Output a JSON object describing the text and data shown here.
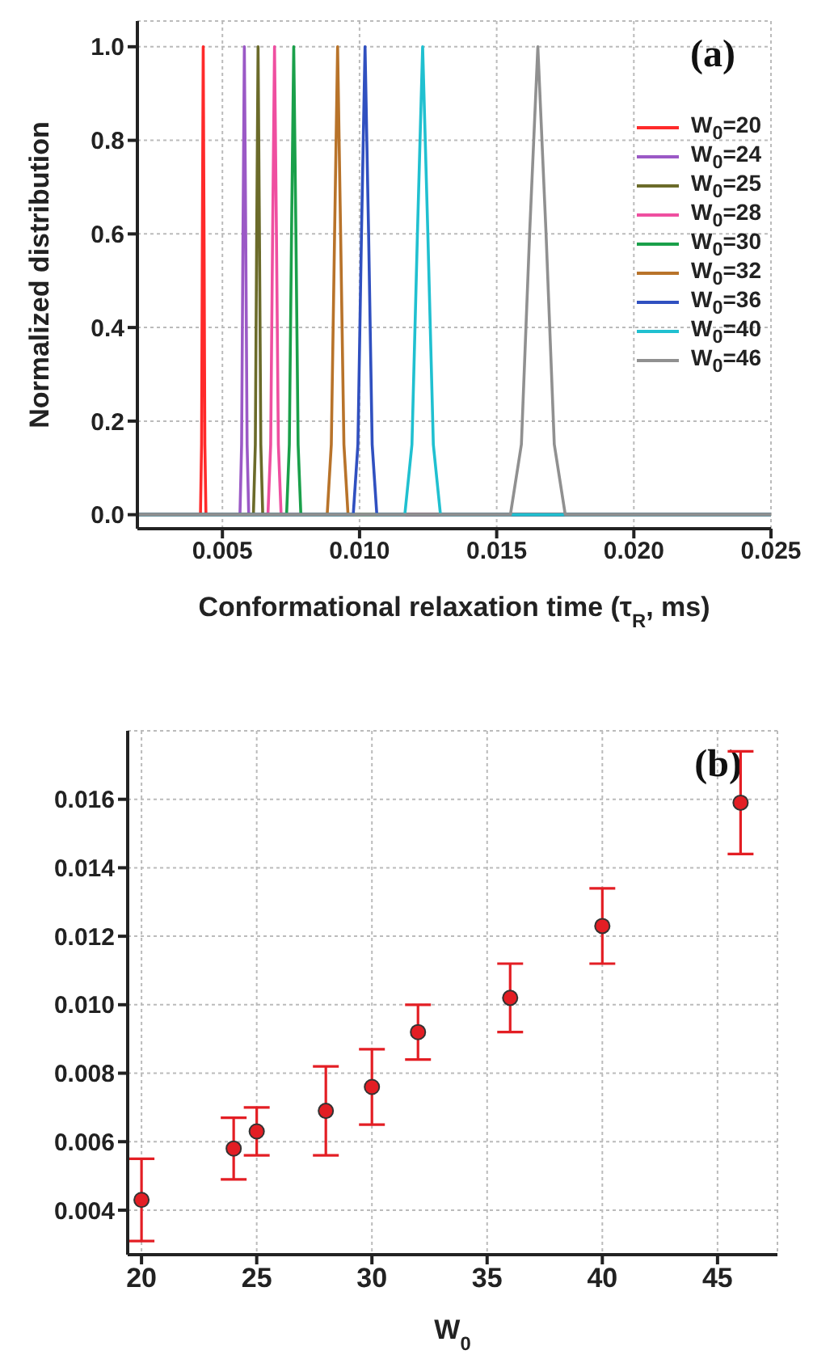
{
  "chart_data": [
    {
      "type": "line",
      "xlabel": "Conformational relaxation time (τ$_{R}$, ms)",
      "ylabel": "Normalized distribution",
      "annotations": [
        "(a)"
      ],
      "xlim": [
        0.0019,
        0.025
      ],
      "ylim": [
        -0.03,
        1.055
      ],
      "xticks": [
        0.005,
        {
          "value": 0.01,
          "label": "0.010"
        },
        0.015,
        {
          "value": 0.02,
          "label": "0.020"
        },
        0.025
      ],
      "yticks": [
        {
          "value": 0,
          "label": "0.0"
        },
        0.2,
        0.4,
        0.6,
        0.8,
        {
          "value": 1,
          "label": "1.0"
        }
      ],
      "grid": true,
      "legend": "top right",
      "marker": "none",
      "line_style": "solid",
      "series": [
        {
          "name": "W$_{0}$=20",
          "color": "#ff2a2a",
          "x": [
            0.0019,
            0.0042,
            0.00424,
            0.00427,
            0.0043,
            0.00433,
            0.00436,
            0.0044,
            0.025
          ],
          "values": [
            0,
            0,
            0.15,
            0.6,
            1,
            0.6,
            0.15,
            0,
            0
          ]
        },
        {
          "name": "W$_{0}$=24",
          "color": "#9b59c6",
          "x": [
            0.0019,
            0.00564,
            0.0057,
            0.00575,
            0.0058,
            0.00585,
            0.0059,
            0.00596,
            0.025
          ],
          "values": [
            0,
            0,
            0.15,
            0.6,
            1,
            0.6,
            0.15,
            0,
            0
          ]
        },
        {
          "name": "W$_{0}$=25",
          "color": "#6b6b2a",
          "x": [
            0.0019,
            0.00613,
            0.0062,
            0.00625,
            0.0063,
            0.00635,
            0.0064,
            0.00647,
            0.025
          ],
          "values": [
            0,
            0,
            0.15,
            0.6,
            1,
            0.6,
            0.15,
            0,
            0
          ]
        },
        {
          "name": "W$_{0}$=28",
          "color": "#ef4fa0",
          "x": [
            0.0019,
            0.00666,
            0.00676,
            0.00683,
            0.0069,
            0.00697,
            0.00704,
            0.00714,
            0.025
          ],
          "values": [
            0,
            0,
            0.15,
            0.6,
            1,
            0.6,
            0.15,
            0,
            0
          ]
        },
        {
          "name": "W$_{0}$=30",
          "color": "#1aa04a",
          "x": [
            0.0019,
            0.00734,
            0.00744,
            0.00752,
            0.0076,
            0.00768,
            0.00776,
            0.00786,
            0.025
          ],
          "values": [
            0,
            0,
            0.15,
            0.6,
            1,
            0.6,
            0.15,
            0,
            0
          ]
        },
        {
          "name": "W$_{0}$=32",
          "color": "#b8732a",
          "x": [
            0.0019,
            0.00882,
            0.00897,
            0.00909,
            0.0092,
            0.00931,
            0.00943,
            0.00958,
            0.025
          ],
          "values": [
            0,
            0,
            0.15,
            0.6,
            1,
            0.6,
            0.15,
            0,
            0
          ]
        },
        {
          "name": "W$_{0}$=36",
          "color": "#3050c0",
          "x": [
            0.0019,
            0.00977,
            0.00994,
            0.01007,
            0.0102,
            0.01033,
            0.01046,
            0.01063,
            0.025
          ],
          "values": [
            0,
            0,
            0.15,
            0.6,
            1,
            0.6,
            0.15,
            0,
            0
          ]
        },
        {
          "name": "W$_{0}$=40",
          "color": "#20c0d0",
          "x": [
            0.0019,
            0.01165,
            0.01191,
            0.01211,
            0.0123,
            0.01249,
            0.01269,
            0.01295,
            0.025
          ],
          "values": [
            0,
            0,
            0.15,
            0.6,
            1,
            0.6,
            0.15,
            0,
            0
          ]
        },
        {
          "name": "W$_{0}$=46",
          "color": "#909090",
          "x": [
            0.0019,
            0.0155,
            0.0159,
            0.0162,
            0.0165,
            0.0168,
            0.0171,
            0.0175,
            0.025
          ],
          "values": [
            0,
            0,
            0.15,
            0.6,
            1,
            0.6,
            0.15,
            0,
            0
          ]
        }
      ]
    },
    {
      "type": "scatter",
      "xlabel": "W$_{0}$",
      "annotations": [
        "(b)"
      ],
      "xlim": [
        19.4,
        47.6
      ],
      "ylim": [
        0.0027,
        0.018
      ],
      "xticks": [
        20,
        25,
        30,
        35,
        40,
        45
      ],
      "yticks": [
        0.004,
        0.006,
        0.008,
        {
          "value": 0.01,
          "label": "0.010"
        },
        0.012,
        0.014,
        0.016
      ],
      "grid": true,
      "marker": "circle",
      "x": [
        20,
        24,
        25,
        28,
        30,
        32,
        36,
        40,
        46
      ],
      "series": [
        {
          "color": "#e31e24",
          "values": [
            0.0043,
            0.0058,
            0.0063,
            0.0069,
            0.0076,
            0.0092,
            0.0102,
            0.0123,
            0.0159
          ],
          "errors": [
            [
              0.0031,
              0.0055
            ],
            [
              0.0049,
              0.0067
            ],
            [
              0.0056,
              0.007
            ],
            [
              0.0056,
              0.0082
            ],
            [
              0.0065,
              0.0087
            ],
            [
              0.0084,
              0.01
            ],
            [
              0.0092,
              0.0112
            ],
            [
              0.0112,
              0.0134
            ],
            [
              0.0144,
              0.0174
            ]
          ]
        }
      ]
    }
  ]
}
